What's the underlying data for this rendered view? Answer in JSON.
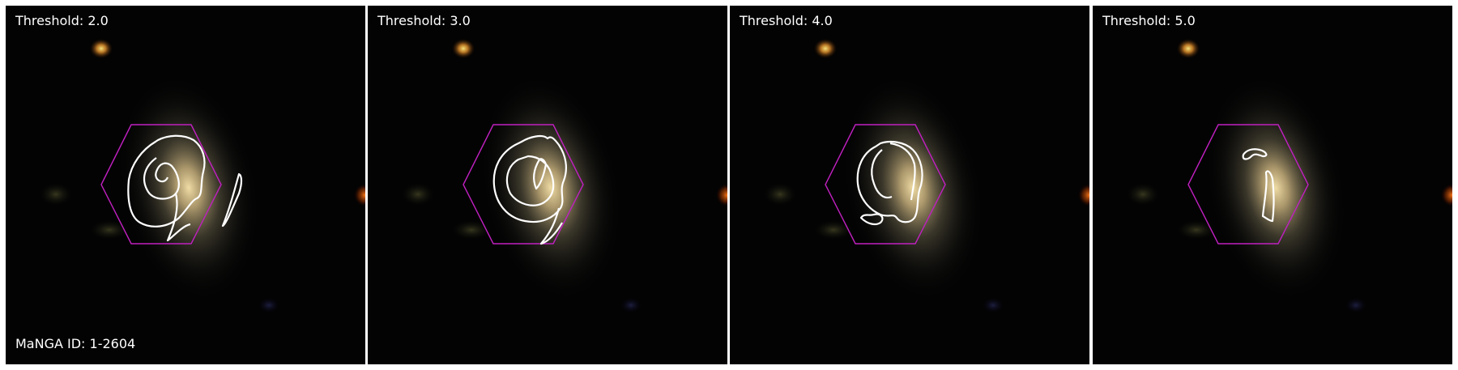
{
  "figure": {
    "panels": [
      {
        "threshold_label": "Threshold: 2.0"
      },
      {
        "threshold_label": "Threshold: 3.0"
      },
      {
        "threshold_label": "Threshold: 4.0"
      },
      {
        "threshold_label": "Threshold: 5.0"
      }
    ],
    "manga_id_label": "MaNGA ID: 1-2604"
  },
  "colors": {
    "background": "#020202",
    "hexagon_outline": "#c020c0",
    "contour": "#ffffff",
    "galaxy_core": "#e8d49a",
    "foreground_star": "#e0a030"
  }
}
